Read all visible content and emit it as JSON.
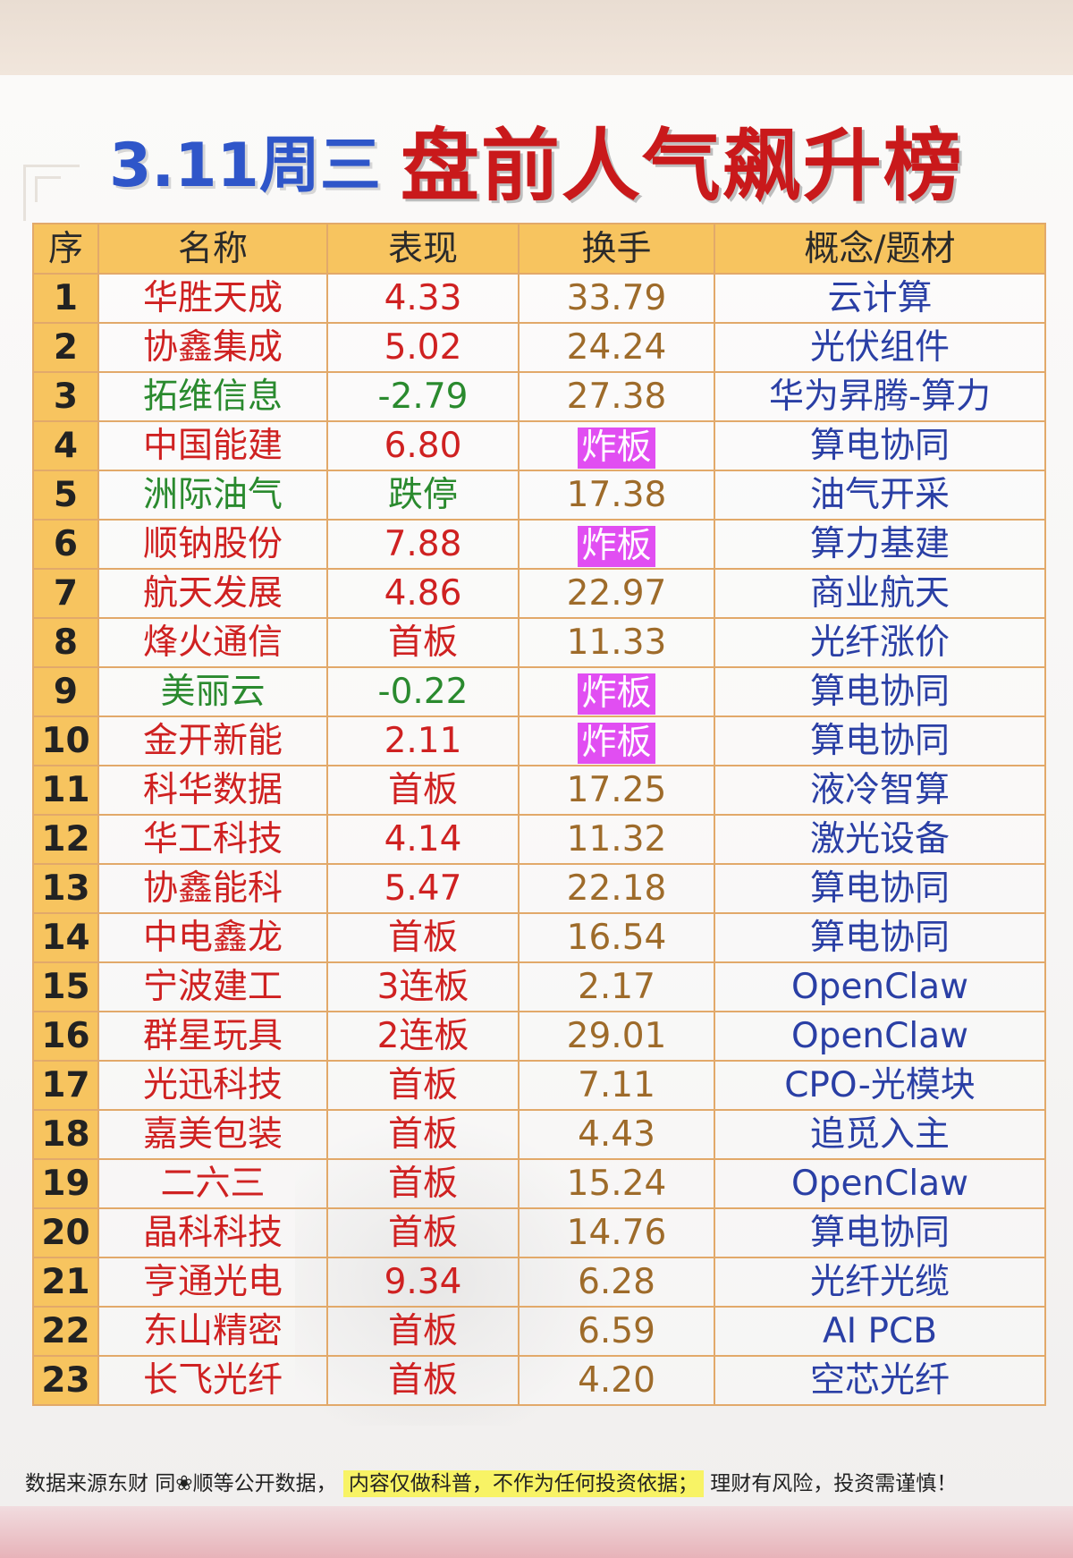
{
  "title": {
    "date": "3.11周三",
    "main": "盘前人气飙升榜"
  },
  "headers": [
    "序",
    "名称",
    "表现",
    "换手",
    "概念/题材"
  ],
  "colors": {
    "name_red": "#cf2121",
    "name_green": "#2a8a2e",
    "turnover": "#9e6b2a",
    "concept": "#2a3fa5",
    "header_bg": "#f7c45f",
    "zhaban_bg": "#e14ef2",
    "title_blue": "#2f56c9",
    "title_red": "#c9191b"
  },
  "rows": [
    {
      "seq": "1",
      "name": "华胜天成",
      "perf": "4.33",
      "turnover": "33.79",
      "concept": "云计算",
      "tone": "red"
    },
    {
      "seq": "2",
      "name": "协鑫集成",
      "perf": "5.02",
      "turnover": "24.24",
      "concept": "光伏组件",
      "tone": "red"
    },
    {
      "seq": "3",
      "name": "拓维信息",
      "perf": "-2.79",
      "turnover": "27.38",
      "concept": "华为昇腾-算力",
      "tone": "green"
    },
    {
      "seq": "4",
      "name": "中国能建",
      "perf": "6.80",
      "turnover": "炸板",
      "concept": "算电协同",
      "tone": "red"
    },
    {
      "seq": "5",
      "name": "洲际油气",
      "perf": "跌停",
      "turnover": "17.38",
      "concept": "油气开采",
      "tone": "green"
    },
    {
      "seq": "6",
      "name": "顺钠股份",
      "perf": "7.88",
      "turnover": "炸板",
      "concept": "算力基建",
      "tone": "red"
    },
    {
      "seq": "7",
      "name": "航天发展",
      "perf": "4.86",
      "turnover": "22.97",
      "concept": "商业航天",
      "tone": "red"
    },
    {
      "seq": "8",
      "name": "烽火通信",
      "perf": "首板",
      "turnover": "11.33",
      "concept": "光纤涨价",
      "tone": "red"
    },
    {
      "seq": "9",
      "name": "美丽云",
      "perf": "-0.22",
      "turnover": "炸板",
      "concept": "算电协同",
      "tone": "green"
    },
    {
      "seq": "10",
      "name": "金开新能",
      "perf": "2.11",
      "turnover": "炸板",
      "concept": "算电协同",
      "tone": "red"
    },
    {
      "seq": "11",
      "name": "科华数据",
      "perf": "首板",
      "turnover": "17.25",
      "concept": "液冷智算",
      "tone": "red"
    },
    {
      "seq": "12",
      "name": "华工科技",
      "perf": "4.14",
      "turnover": "11.32",
      "concept": "激光设备",
      "tone": "red"
    },
    {
      "seq": "13",
      "name": "协鑫能科",
      "perf": "5.47",
      "turnover": "22.18",
      "concept": "算电协同",
      "tone": "red"
    },
    {
      "seq": "14",
      "name": "中电鑫龙",
      "perf": "首板",
      "turnover": "16.54",
      "concept": "算电协同",
      "tone": "red"
    },
    {
      "seq": "15",
      "name": "宁波建工",
      "perf": "3连板",
      "turnover": "2.17",
      "concept": "OpenClaw",
      "tone": "red"
    },
    {
      "seq": "16",
      "name": "群星玩具",
      "perf": "2连板",
      "turnover": "29.01",
      "concept": "OpenClaw",
      "tone": "red"
    },
    {
      "seq": "17",
      "name": "光迅科技",
      "perf": "首板",
      "turnover": "7.11",
      "concept": "CPO-光模块",
      "tone": "red"
    },
    {
      "seq": "18",
      "name": "嘉美包装",
      "perf": "首板",
      "turnover": "4.43",
      "concept": "追觅入主",
      "tone": "red"
    },
    {
      "seq": "19",
      "name": "二六三",
      "perf": "首板",
      "turnover": "15.24",
      "concept": "OpenClaw",
      "tone": "red"
    },
    {
      "seq": "20",
      "name": "晶科科技",
      "perf": "首板",
      "turnover": "14.76",
      "concept": "算电协同",
      "tone": "red"
    },
    {
      "seq": "21",
      "name": "亨通光电",
      "perf": "9.34",
      "turnover": "6.28",
      "concept": "光纤光缆",
      "tone": "red"
    },
    {
      "seq": "22",
      "name": "东山精密",
      "perf": "首板",
      "turnover": "6.59",
      "concept": "AI PCB",
      "tone": "red"
    },
    {
      "seq": "23",
      "name": "长飞光纤",
      "perf": "首板",
      "turnover": "4.20",
      "concept": "空芯光纤",
      "tone": "red"
    }
  ],
  "footer": {
    "left": "数据来源东财 同❀顺等公开数据，",
    "highlight": "内容仅做科普，不作为任何投资依据；",
    "right": "理财有风险，投资需谨慎！"
  }
}
